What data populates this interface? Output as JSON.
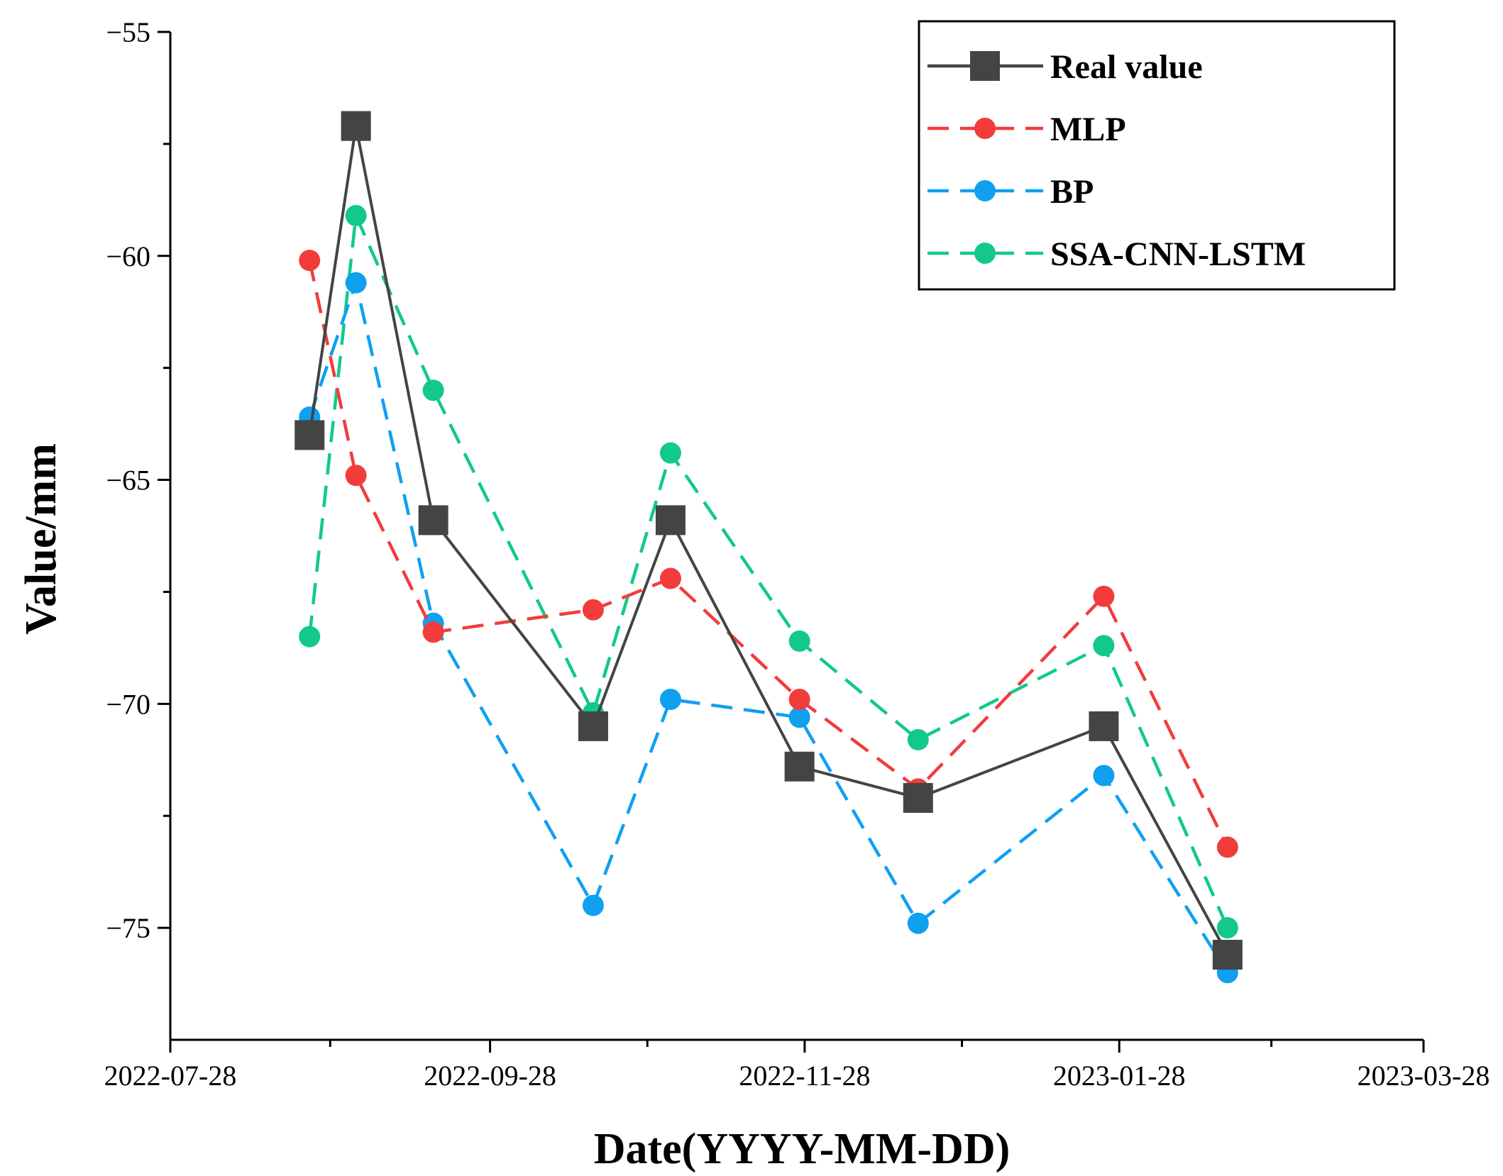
{
  "chart_data": {
    "type": "line",
    "title": "",
    "xlabel": "Date(YYYY-MM-DD)",
    "ylabel": "Value/mm",
    "ylim": [
      -77.5,
      -55
    ],
    "xlim": [
      "2022-07-28",
      "2023-03-28"
    ],
    "yticks": [
      -55,
      -60,
      -65,
      -70,
      -75
    ],
    "xtick_labels": [
      "2022-07-28",
      "2022-09-28",
      "2022-11-28",
      "2023-01-28",
      "2023-03-28"
    ],
    "x": [
      "2022-08-24",
      "2022-09-02",
      "2022-09-17",
      "2022-10-18",
      "2022-11-02",
      "2022-11-27",
      "2022-12-20",
      "2023-01-25",
      "2023-02-18"
    ],
    "series": [
      {
        "name": "Real value",
        "color": "#444444",
        "style": "solid",
        "marker": "square",
        "values": [
          -64.0,
          -57.1,
          -65.9,
          -70.5,
          -65.9,
          -71.4,
          -72.1,
          -70.5,
          -75.6
        ]
      },
      {
        "name": "MLP",
        "color": "#f23c3c",
        "style": "dashed",
        "marker": "circle",
        "values": [
          -60.1,
          -64.9,
          -68.4,
          -67.9,
          -67.2,
          -69.9,
          -71.9,
          -67.6,
          -73.2
        ]
      },
      {
        "name": "BP",
        "color": "#0fa0f0",
        "style": "dashed",
        "marker": "circle",
        "values": [
          -63.6,
          -60.6,
          -68.2,
          -74.5,
          -69.9,
          -70.3,
          -74.9,
          -71.6,
          -76.0
        ]
      },
      {
        "name": "SSA-CNN-LSTM",
        "color": "#12c98a",
        "style": "dashed",
        "marker": "circle",
        "values": [
          -68.5,
          -59.1,
          -63.0,
          -70.2,
          -64.4,
          -68.6,
          -70.8,
          -68.7,
          -75.0
        ]
      }
    ],
    "legend_position": "top-right"
  }
}
